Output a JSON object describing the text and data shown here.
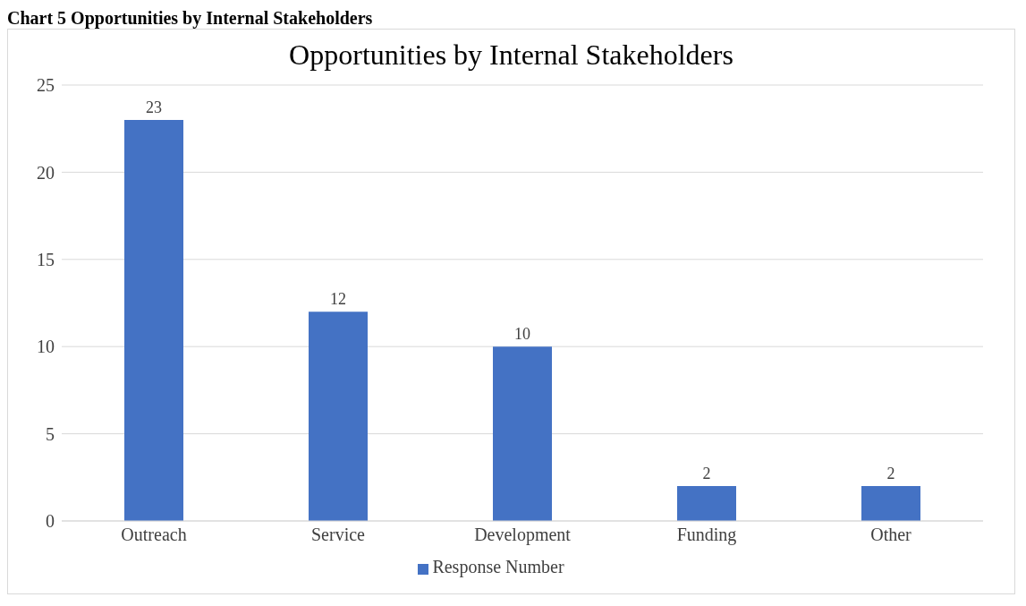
{
  "chart_data": {
    "type": "bar",
    "title": "Opportunities by Internal Stakeholders",
    "annotations": [
      "Chart 5 Opportunities by Internal Stakeholders"
    ],
    "categories": [
      "Outreach",
      "Service",
      "Development",
      "Funding",
      "Other"
    ],
    "series": [
      {
        "name": "Response Number",
        "color": "#4472c4",
        "values": [
          23,
          12,
          10,
          2,
          2
        ]
      }
    ],
    "ylim": [
      0,
      25
    ],
    "yticks": [
      0,
      5,
      10,
      15,
      20,
      25
    ],
    "grid": "y",
    "legend": "bottom",
    "data_labels": true
  }
}
